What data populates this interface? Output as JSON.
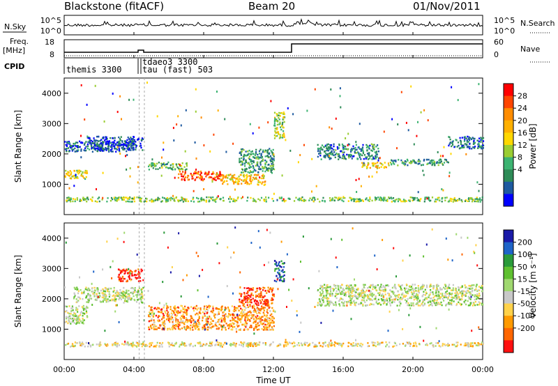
{
  "header": {
    "station": "Blackstone (fitACF)",
    "beam": "Beam 20",
    "date": "01/Nov/2011"
  },
  "noise_panel": {
    "left_label": "N.Sky",
    "left_ticks": [
      "10^5",
      "10^0"
    ],
    "right_ticks": [
      "10^5",
      "10^0"
    ],
    "right_label": "N.Search"
  },
  "freq_panel": {
    "left_label_1": "Freq.",
    "left_label_2": "[MHz]",
    "left_ticks": [
      "18",
      "8"
    ],
    "right_ticks": [
      "60",
      "0"
    ],
    "right_label": "Nave"
  },
  "cpid_panel": {
    "label": "CPID",
    "modes": [
      "themis 3300",
      "tdaeo3 3300",
      "tau (fast) 503"
    ]
  },
  "chart_data": [
    {
      "type": "heatmap",
      "name": "power",
      "ylabel": "Slant Range [km]",
      "ylim": [
        0,
        4500
      ],
      "yticks": [
        1000,
        2000,
        3000,
        4000
      ],
      "xlim": [
        0,
        24
      ],
      "xticks": [
        "00:00",
        "04:00",
        "08:00",
        "12:00",
        "16:00",
        "20:00",
        "00:00"
      ],
      "colorbar": {
        "label": "Power [dB]",
        "ticks": [
          "28",
          "24",
          "20",
          "16",
          "12",
          "8",
          "4"
        ],
        "colors": [
          "#ff0000",
          "#ff4500",
          "#ff8c00",
          "#ffb000",
          "#ffd700",
          "#9acd32",
          "#3cb371",
          "#2e8b57",
          "#1e5aa0",
          "#0000ff"
        ]
      },
      "echo_bands": [
        {
          "t0": 0.0,
          "t1": 1.3,
          "r0": 1200,
          "r1": 1500,
          "level": 0.55
        },
        {
          "t0": 0.0,
          "t1": 4.0,
          "r0": 2100,
          "r1": 2450,
          "level": 0.15
        },
        {
          "t0": 1.3,
          "t1": 4.5,
          "r0": 2150,
          "r1": 2600,
          "level": 0.12
        },
        {
          "t0": 4.8,
          "t1": 7.0,
          "r0": 1500,
          "r1": 1750,
          "level": 0.35
        },
        {
          "t0": 6.5,
          "t1": 9.0,
          "r0": 1150,
          "r1": 1450,
          "level": 0.85
        },
        {
          "t0": 9.0,
          "t1": 11.5,
          "r0": 1000,
          "r1": 1350,
          "level": 0.6
        },
        {
          "t0": 10.0,
          "t1": 12.0,
          "r0": 1400,
          "r1": 2200,
          "level": 0.3
        },
        {
          "t0": 12.0,
          "t1": 12.6,
          "r0": 2500,
          "r1": 3400,
          "level": 0.45
        },
        {
          "t0": 14.5,
          "t1": 18.0,
          "r0": 1850,
          "r1": 2350,
          "level": 0.25
        },
        {
          "t0": 17.0,
          "t1": 18.5,
          "r0": 1550,
          "r1": 1750,
          "level": 0.6
        },
        {
          "t0": 18.5,
          "t1": 22.0,
          "r0": 1650,
          "r1": 1850,
          "level": 0.3
        },
        {
          "t0": 22.0,
          "t1": 24.0,
          "r0": 2200,
          "r1": 2600,
          "level": 0.2
        },
        {
          "t0": 0.0,
          "t1": 24.0,
          "r0": 450,
          "r1": 600,
          "level": 0.4
        }
      ]
    },
    {
      "type": "heatmap",
      "name": "velocity",
      "ylabel": "Slant Range [km]",
      "ylim": [
        0,
        4500
      ],
      "yticks": [
        1000,
        2000,
        3000,
        4000
      ],
      "xlim": [
        0,
        24
      ],
      "xticks": [
        "00:00",
        "04:00",
        "08:00",
        "12:00",
        "16:00",
        "20:00",
        "00:00"
      ],
      "xlabel": "Time UT",
      "colorbar": {
        "label": "Velocity [m s⁻¹]",
        "ticks": [
          "200",
          "100",
          "50",
          "15",
          "-15",
          "-50",
          "-100",
          "-200"
        ],
        "colors": [
          "#1a1aa8",
          "#1e64c8",
          "#2a9a3a",
          "#5fc030",
          "#a0d870",
          "#c8c8c8",
          "#ffd24a",
          "#ff9a00",
          "#ff6600",
          "#ff1010"
        ]
      },
      "echo_bands": [
        {
          "t0": 0.0,
          "t1": 1.3,
          "r0": 1200,
          "r1": 1800,
          "level": 0.5
        },
        {
          "t0": 0.5,
          "t1": 4.5,
          "r0": 1900,
          "r1": 2400,
          "level": 0.5
        },
        {
          "t0": 4.8,
          "t1": 12.0,
          "r0": 1000,
          "r1": 1800,
          "level": 0.25
        },
        {
          "t0": 10.0,
          "t1": 12.0,
          "r0": 1800,
          "r1": 2400,
          "level": 0.1
        },
        {
          "t0": 12.0,
          "t1": 12.6,
          "r0": 2600,
          "r1": 3300,
          "level": 0.85
        },
        {
          "t0": 14.5,
          "t1": 24.0,
          "r0": 1800,
          "r1": 2500,
          "level": 0.5
        },
        {
          "t0": 3.0,
          "t1": 4.5,
          "r0": 2600,
          "r1": 3000,
          "level": 0.05
        },
        {
          "t0": 0.0,
          "t1": 24.0,
          "r0": 450,
          "r1": 600,
          "level": 0.4
        }
      ]
    }
  ]
}
